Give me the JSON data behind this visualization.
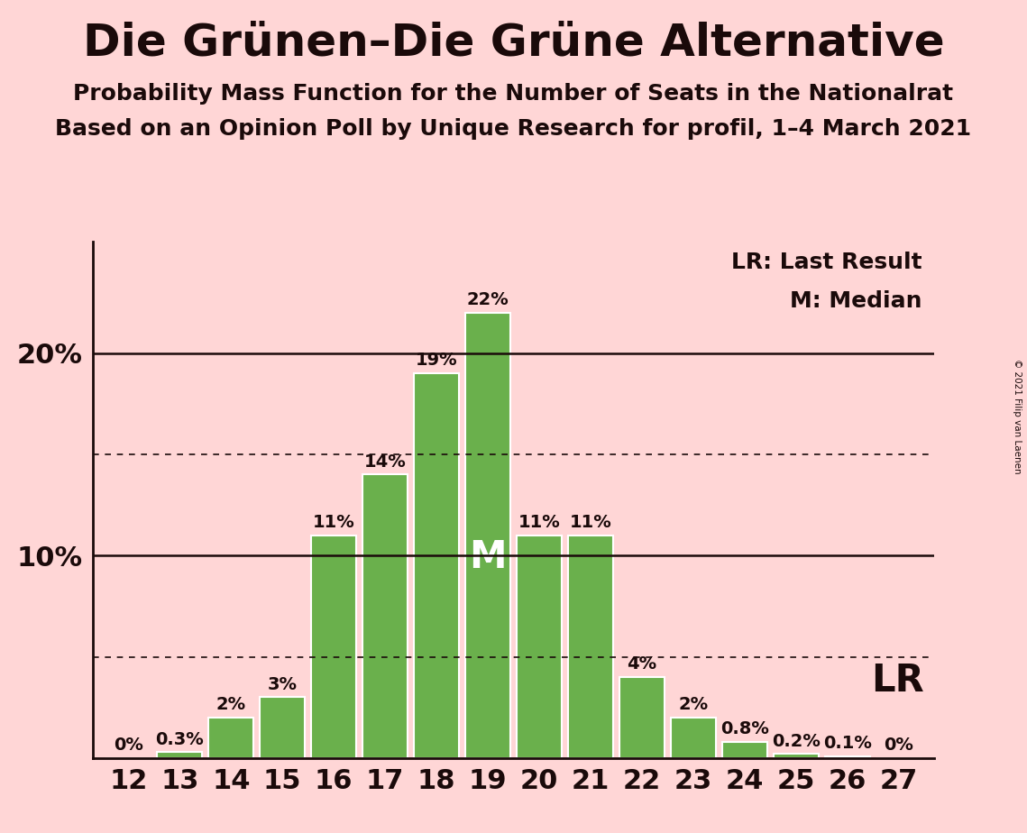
{
  "title": "Die Grünen–Die Grüne Alternative",
  "subtitle1": "Probability Mass Function for the Number of Seats in the Nationalrat",
  "subtitle2": "Based on an Opinion Poll by Unique Research for profil, 1–4 March 2021",
  "copyright": "© 2021 Filip van Laenen",
  "categories": [
    12,
    13,
    14,
    15,
    16,
    17,
    18,
    19,
    20,
    21,
    22,
    23,
    24,
    25,
    26,
    27
  ],
  "values": [
    0.0,
    0.3,
    2.0,
    3.0,
    11.0,
    14.0,
    19.0,
    22.0,
    11.0,
    11.0,
    4.0,
    2.0,
    0.8,
    0.2,
    0.1,
    0.0
  ],
  "labels": [
    "0%",
    "0.3%",
    "2%",
    "3%",
    "11%",
    "14%",
    "19%",
    "22%",
    "11%",
    "11%",
    "4%",
    "2%",
    "0.8%",
    "0.2%",
    "0.1%",
    "0%"
  ],
  "bar_color": "#6ab04c",
  "bar_edge_color": "#ffffff",
  "background_color": "#ffd6d6",
  "text_color": "#1a0a0a",
  "median_seat": 19,
  "solid_lines": [
    10.0,
    20.0
  ],
  "dotted_lines": [
    5.0,
    15.0
  ],
  "ylim": [
    0,
    25.5
  ],
  "ytick_positions": [
    10.0,
    20.0
  ],
  "ytick_labels": [
    "10%",
    "20%"
  ],
  "legend_text1": "LR: Last Result",
  "legend_text2": "M: Median",
  "lr_label": "LR",
  "lr_seat_index": 24,
  "bar_label_fontsize": 14,
  "median_fontsize": 30,
  "lr_fontsize": 30,
  "legend_fontsize": 18,
  "ytick_fontsize": 22,
  "xtick_fontsize": 22,
  "title_fontsize": 36,
  "sub1_fontsize": 18,
  "sub2_fontsize": 18
}
